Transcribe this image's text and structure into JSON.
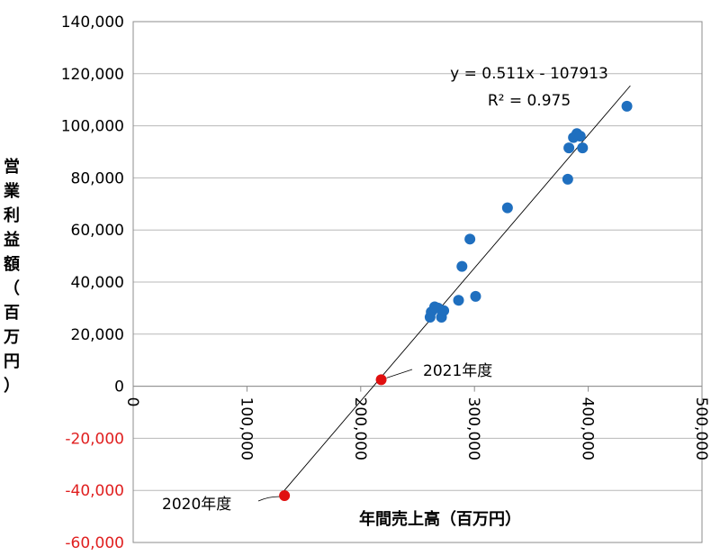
{
  "chart_data": {
    "type": "scatter",
    "xlabel": "年間売上高（百万円）",
    "ylabel": "営業利益額（百万円）",
    "xlim": [
      0,
      500000
    ],
    "ylim": [
      -60000,
      140000
    ],
    "x_ticks": [
      0,
      100000,
      200000,
      300000,
      400000,
      500000
    ],
    "x_tick_labels": [
      "0",
      "100,000",
      "200,000",
      "300,000",
      "400,000",
      "500,000"
    ],
    "y_ticks": [
      -60000,
      -40000,
      -20000,
      0,
      20000,
      40000,
      60000,
      80000,
      100000,
      120000,
      140000
    ],
    "y_tick_labels": [
      "-60,000",
      "-40,000",
      "-20,000",
      "0",
      "20,000",
      "40,000",
      "60,000",
      "80,000",
      "100,000",
      "120,000",
      "140,000"
    ],
    "negative_tick_color": "#e02020",
    "grid": "horizontal",
    "series": [
      {
        "color": "#1f6fbf",
        "points": [
          [
            261000,
            26500
          ],
          [
            262000,
            28500
          ],
          [
            265000,
            30500
          ],
          [
            268000,
            30000
          ],
          [
            271000,
            26500
          ],
          [
            273000,
            29000
          ],
          [
            286000,
            33000
          ],
          [
            289000,
            46000
          ],
          [
            296000,
            56500
          ],
          [
            301000,
            34500
          ],
          [
            329000,
            68500
          ],
          [
            382000,
            79500
          ],
          [
            383000,
            91500
          ],
          [
            387000,
            95500
          ],
          [
            390000,
            97000
          ],
          [
            393000,
            96000
          ],
          [
            395000,
            91500
          ],
          [
            434000,
            107500
          ]
        ]
      },
      {
        "color": "#e01010",
        "points": [
          [
            218000,
            2500
          ],
          [
            133000,
            -42000
          ]
        ]
      }
    ],
    "trendline": {
      "slope": 0.511,
      "intercept": -107913,
      "x_range": [
        133000,
        437000
      ],
      "equation": "y = 0.511x - 107913",
      "r2": "R² = 0.975"
    },
    "annotations": [
      {
        "label": "2021年度",
        "point": [
          218000,
          2500
        ]
      },
      {
        "label": "2020年度",
        "point": [
          133000,
          -42000
        ]
      }
    ]
  }
}
